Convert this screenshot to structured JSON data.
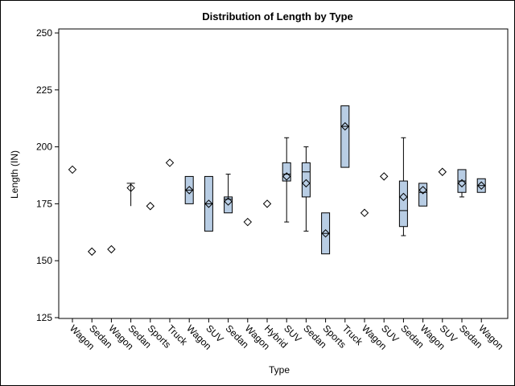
{
  "chart_data": {
    "type": "box",
    "title": "Distribution of Length by Type",
    "xlabel": "Type",
    "ylabel": "Length (IN)",
    "ylim": [
      125,
      250
    ],
    "yticks": [
      125,
      150,
      175,
      200,
      225,
      250
    ],
    "categories": [
      "Wagon",
      "Sedan",
      "Wagon",
      "Sedan",
      "Sports",
      "Truck",
      "Wagon",
      "SUV",
      "Sedan",
      "Wagon",
      "Hybrid",
      "SUV",
      "Sedan",
      "Sports",
      "Truck",
      "Wagon",
      "SUV",
      "Sedan",
      "Wagon",
      "SUV",
      "Sedan",
      "Wagon"
    ],
    "boxes": [
      {
        "mean": 190
      },
      {
        "mean": 154
      },
      {
        "mean": 155
      },
      {
        "min": 174,
        "max": 184,
        "mean": 182
      },
      {
        "mean": 174
      },
      {
        "mean": 193
      },
      {
        "q1": 175,
        "median": 181,
        "q3": 187,
        "mean": 181
      },
      {
        "q1": 163,
        "median": 175,
        "q3": 187,
        "mean": 175
      },
      {
        "min": 171,
        "q1": 171,
        "median": 177,
        "q3": 178,
        "max": 188,
        "mean": 176
      },
      {
        "mean": 167
      },
      {
        "mean": 175
      },
      {
        "min": 167,
        "q1": 185,
        "median": 188,
        "q3": 193,
        "max": 204,
        "mean": 187
      },
      {
        "min": 163,
        "q1": 178,
        "median": 189,
        "q3": 193,
        "max": 200,
        "mean": 184
      },
      {
        "q1": 153,
        "median": 162,
        "q3": 171,
        "mean": 162
      },
      {
        "q1": 191,
        "median": 209,
        "q3": 218,
        "mean": 209
      },
      {
        "mean": 171
      },
      {
        "mean": 187
      },
      {
        "min": 161,
        "q1": 165,
        "median": 172,
        "q3": 185,
        "max": 204,
        "mean": 178
      },
      {
        "q1": 174,
        "median": 180,
        "q3": 184,
        "mean": 181
      },
      {
        "mean": 189
      },
      {
        "min": 178,
        "q1": 180,
        "median": 185,
        "q3": 190,
        "max": 190,
        "mean": 184
      },
      {
        "q1": 180,
        "median": 183,
        "q3": 186,
        "mean": 183
      }
    ],
    "colors": {
      "box_fill": "#b8cde4",
      "stroke": "#000000"
    }
  }
}
